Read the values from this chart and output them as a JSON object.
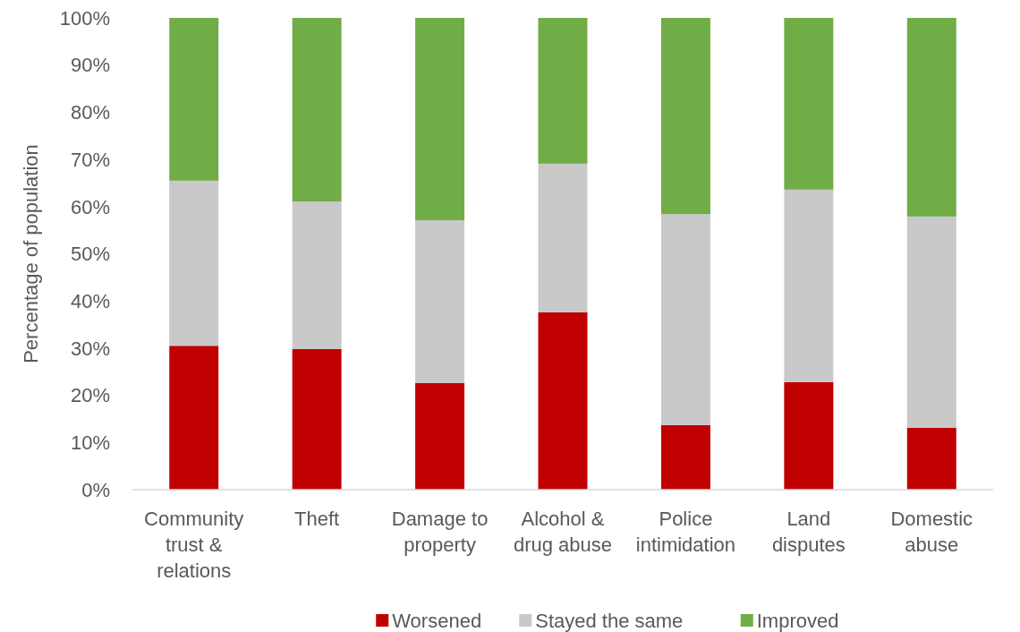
{
  "chart_data": {
    "type": "bar",
    "stacked": true,
    "ylabel": "Percentage of population",
    "categories": [
      "Community trust & relations",
      "Theft",
      "Damage to property",
      "Alcohol & drug abuse",
      "Police intimidation",
      "Land disputes",
      "Domestic abuse"
    ],
    "series": [
      {
        "name": "Worsened",
        "color": "#c00000",
        "values": [
          30.5,
          29.8,
          22.6,
          37.6,
          13.7,
          22.8,
          13.1
        ]
      },
      {
        "name": "Stayed the same",
        "color": "#c9c9c9",
        "values": [
          35.0,
          31.3,
          34.5,
          31.5,
          44.7,
          40.8,
          44.8
        ]
      },
      {
        "name": "Improved",
        "color": "#70ad47",
        "values": [
          34.5,
          38.9,
          42.9,
          30.9,
          41.6,
          36.4,
          42.1
        ]
      }
    ],
    "ylim": [
      0,
      100
    ],
    "yticks": [
      {
        "value": 0,
        "label": "0%"
      },
      {
        "value": 10,
        "label": "10%"
      },
      {
        "value": 20,
        "label": "20%"
      },
      {
        "value": 30,
        "label": "30%"
      },
      {
        "value": 40,
        "label": "40%"
      },
      {
        "value": 50,
        "label": "50%"
      },
      {
        "value": 60,
        "label": "60%"
      },
      {
        "value": 70,
        "label": "70%"
      },
      {
        "value": 80,
        "label": "80%"
      },
      {
        "value": 90,
        "label": "90%"
      },
      {
        "value": 100,
        "label": "100%"
      }
    ],
    "grid": false,
    "legend": "bottom"
  }
}
